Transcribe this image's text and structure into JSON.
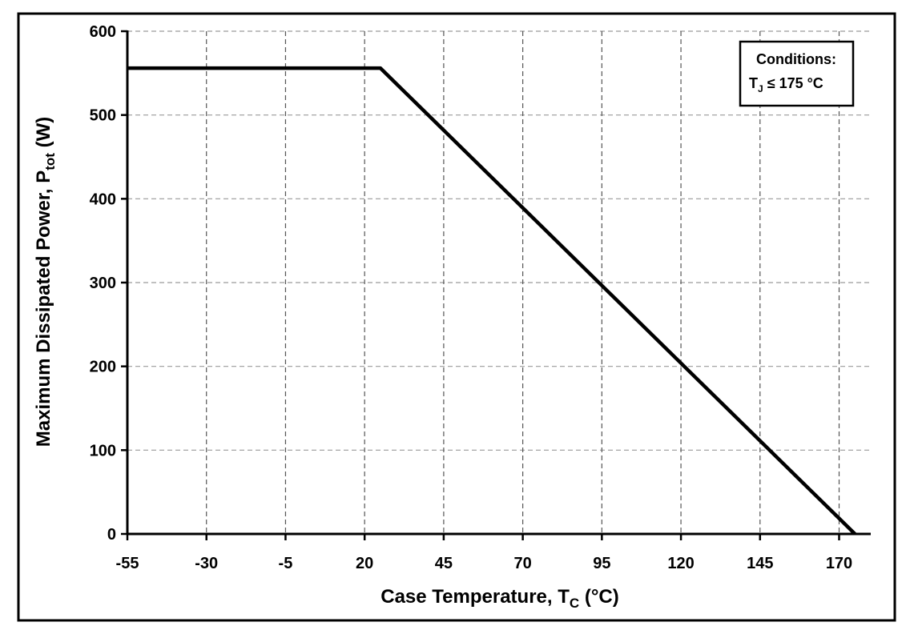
{
  "chart_data": {
    "type": "line",
    "xlabel": {
      "main": "Case Temperature, T",
      "sub": "C",
      "unit": " (°C)"
    },
    "ylabel": {
      "main": "Maximum Dissipated Power, P",
      "sub": "tot",
      "unit": " (W)"
    },
    "xlim": [
      -55,
      180
    ],
    "ylim": [
      0,
      600
    ],
    "xticks": [
      -55,
      -30,
      -5,
      20,
      45,
      70,
      95,
      120,
      145,
      170
    ],
    "yticks": [
      0,
      100,
      200,
      300,
      400,
      500,
      600
    ],
    "grid": true,
    "series": [
      {
        "x": [
          -55,
          25,
          175
        ],
        "y": [
          556,
          556,
          0
        ]
      }
    ],
    "annotation": {
      "line1": "Conditions:",
      "line2_main": "T",
      "line2_sub": "J",
      "line2_rest": " ≤ 175 °C"
    },
    "colors": {
      "line": "#000000",
      "grid": "#9a9a9a",
      "frame": "#000000"
    }
  }
}
